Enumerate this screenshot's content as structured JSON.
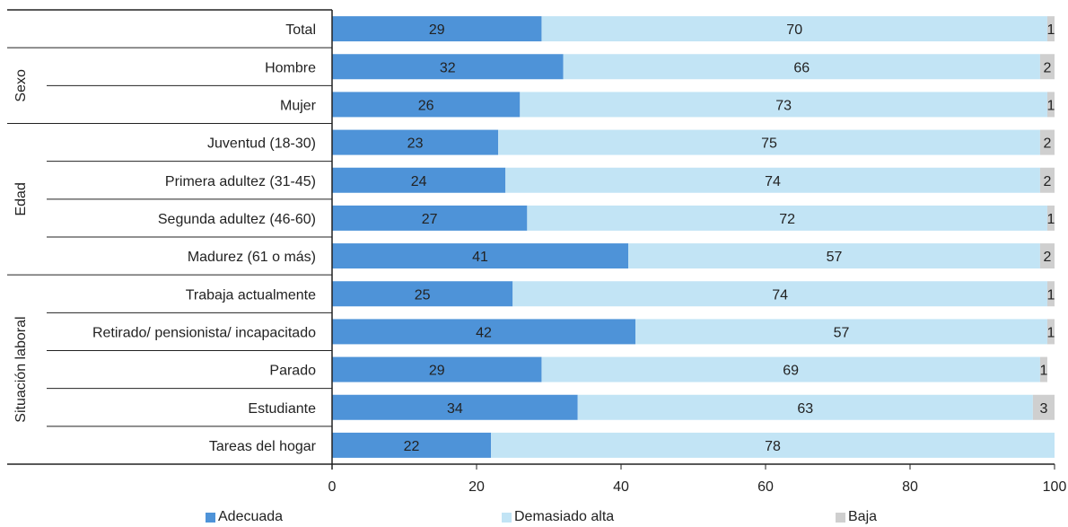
{
  "chart_data": {
    "type": "bar",
    "orientation": "horizontal",
    "stacked": true,
    "title": "",
    "xlabel": "",
    "ylabel": "",
    "xlim": [
      0,
      100
    ],
    "xticks": [
      0,
      20,
      40,
      60,
      80,
      100
    ],
    "grid": false,
    "legend_position": "bottom",
    "groups": [
      {
        "name": "",
        "categories": [
          "Total"
        ]
      },
      {
        "name": "Sexo",
        "categories": [
          "Hombre",
          "Mujer"
        ]
      },
      {
        "name": "Edad",
        "categories": [
          "Juventud (18-30)",
          "Primera adultez (31-45)",
          "Segunda adultez (46-60)",
          "Madurez (61 o más)"
        ]
      },
      {
        "name": "Situación laboral",
        "categories": [
          "Trabaja actualmente",
          "Retirado/ pensionista/ incapacitado",
          "Parado",
          "Estudiante",
          "Tareas del hogar"
        ]
      }
    ],
    "categories": [
      "Total",
      "Hombre",
      "Mujer",
      "Juventud (18-30)",
      "Primera adultez (31-45)",
      "Segunda adultez (46-60)",
      "Madurez (61 o más)",
      "Trabaja actualmente",
      "Retirado/ pensionista/ incapacitado",
      "Parado",
      "Estudiante",
      "Tareas del hogar"
    ],
    "series": [
      {
        "name": "Adecuada",
        "color": "#4e93d8",
        "values": [
          29,
          32,
          26,
          23,
          24,
          27,
          41,
          25,
          42,
          29,
          34,
          22
        ]
      },
      {
        "name": "Demasiado alta",
        "color": "#c2e4f5",
        "values": [
          70,
          66,
          73,
          75,
          74,
          72,
          57,
          74,
          57,
          69,
          63,
          78
        ]
      },
      {
        "name": "Baja",
        "color": "#cfcfcf",
        "values": [
          1,
          2,
          1,
          2,
          2,
          1,
          2,
          1,
          1,
          1,
          3,
          0
        ]
      }
    ]
  }
}
